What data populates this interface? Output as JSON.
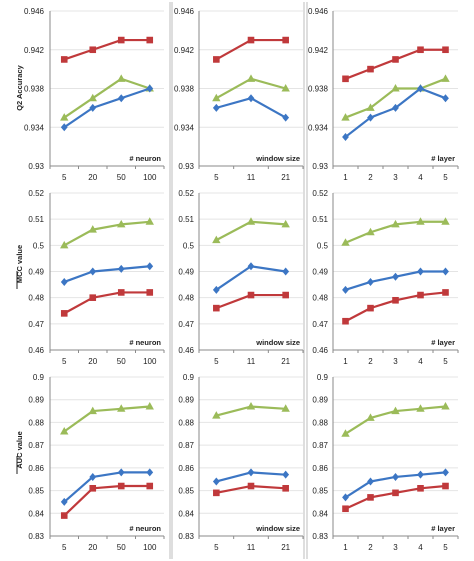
{
  "colors": {
    "red": "#c0393b",
    "blue": "#3c76c4",
    "green": "#9bbb59",
    "grid": "#e4e4e4",
    "axis": "#8a8a8a",
    "divider": "#bcbcbc"
  },
  "row_labels": [
    "Q2  Accuracy",
    "MCC value",
    "AUC value"
  ],
  "chart_data": [
    {
      "type": "line",
      "row": 0,
      "col": 0,
      "xlabel": "# neuron",
      "ylabel": "Q2  Accuracy",
      "categories": [
        "5",
        "20",
        "50",
        "100"
      ],
      "ylim": [
        0.93,
        0.946
      ],
      "yticks": [
        "0.93",
        "0.934",
        "0.938",
        "0.942",
        "0.946"
      ],
      "series": [
        {
          "color": "red",
          "marker": "square",
          "values": [
            0.941,
            0.942,
            0.943,
            0.943
          ]
        },
        {
          "color": "green",
          "marker": "triangle",
          "values": [
            0.935,
            0.937,
            0.939,
            0.938
          ]
        },
        {
          "color": "blue",
          "marker": "diamond",
          "values": [
            0.934,
            0.936,
            0.937,
            0.938
          ]
        }
      ]
    },
    {
      "type": "line",
      "row": 0,
      "col": 1,
      "xlabel": "window size",
      "ylabel": "",
      "categories": [
        "5",
        "11",
        "21"
      ],
      "ylim": [
        0.93,
        0.946
      ],
      "yticks": [
        "0.93",
        "0.934",
        "0.938",
        "0.942",
        "0.946"
      ],
      "series": [
        {
          "color": "red",
          "marker": "square",
          "values": [
            0.941,
            0.943,
            0.943
          ]
        },
        {
          "color": "green",
          "marker": "triangle",
          "values": [
            0.937,
            0.939,
            0.938
          ]
        },
        {
          "color": "blue",
          "marker": "diamond",
          "values": [
            0.936,
            0.937,
            0.935
          ]
        }
      ]
    },
    {
      "type": "line",
      "row": 0,
      "col": 2,
      "xlabel": "# layer",
      "ylabel": "",
      "categories": [
        "1",
        "2",
        "3",
        "4",
        "5"
      ],
      "ylim": [
        0.93,
        0.946
      ],
      "yticks": [
        "0.93",
        "0.934",
        "0.938",
        "0.942",
        "0.946"
      ],
      "series": [
        {
          "color": "red",
          "marker": "square",
          "values": [
            0.939,
            0.94,
            0.941,
            0.942,
            0.942
          ]
        },
        {
          "color": "green",
          "marker": "triangle",
          "values": [
            0.935,
            0.936,
            0.938,
            0.938,
            0.939
          ]
        },
        {
          "color": "blue",
          "marker": "diamond",
          "values": [
            0.933,
            0.935,
            0.936,
            0.938,
            0.937
          ]
        }
      ]
    },
    {
      "type": "line",
      "row": 1,
      "col": 0,
      "xlabel": "# neuron",
      "ylabel": "MCC value",
      "categories": [
        "5",
        "20",
        "50",
        "100"
      ],
      "ylim": [
        0.46,
        0.52
      ],
      "yticks": [
        "0.46",
        "0.47",
        "0.48",
        "0.49",
        "0.5",
        "0.51",
        "0.52"
      ],
      "series": [
        {
          "color": "green",
          "marker": "triangle",
          "values": [
            0.5,
            0.506,
            0.508,
            0.509
          ]
        },
        {
          "color": "blue",
          "marker": "diamond",
          "values": [
            0.486,
            0.49,
            0.491,
            0.492
          ]
        },
        {
          "color": "red",
          "marker": "square",
          "values": [
            0.474,
            0.48,
            0.482,
            0.482
          ]
        }
      ]
    },
    {
      "type": "line",
      "row": 1,
      "col": 1,
      "xlabel": "window size",
      "ylabel": "",
      "categories": [
        "5",
        "11",
        "21"
      ],
      "ylim": [
        0.46,
        0.52
      ],
      "yticks": [
        "0.46",
        "0.47",
        "0.48",
        "0.49",
        "0.5",
        "0.51",
        "0.52"
      ],
      "series": [
        {
          "color": "green",
          "marker": "triangle",
          "values": [
            0.502,
            0.509,
            0.508
          ]
        },
        {
          "color": "blue",
          "marker": "diamond",
          "values": [
            0.483,
            0.492,
            0.49
          ]
        },
        {
          "color": "red",
          "marker": "square",
          "values": [
            0.476,
            0.481,
            0.481
          ]
        }
      ]
    },
    {
      "type": "line",
      "row": 1,
      "col": 2,
      "xlabel": "# layer",
      "ylabel": "",
      "categories": [
        "1",
        "2",
        "3",
        "4",
        "5"
      ],
      "ylim": [
        0.46,
        0.52
      ],
      "yticks": [
        "0.46",
        "0.47",
        "0.48",
        "0.49",
        "0.5",
        "0.51",
        "0.52"
      ],
      "series": [
        {
          "color": "green",
          "marker": "triangle",
          "values": [
            0.501,
            0.505,
            0.508,
            0.509,
            0.509
          ]
        },
        {
          "color": "blue",
          "marker": "diamond",
          "values": [
            0.483,
            0.486,
            0.488,
            0.49,
            0.49
          ]
        },
        {
          "color": "red",
          "marker": "square",
          "values": [
            0.471,
            0.476,
            0.479,
            0.481,
            0.482
          ]
        }
      ]
    },
    {
      "type": "line",
      "row": 2,
      "col": 0,
      "xlabel": "# neuron",
      "ylabel": "AUC value",
      "categories": [
        "5",
        "20",
        "50",
        "100"
      ],
      "ylim": [
        0.83,
        0.9
      ],
      "yticks": [
        "0.83",
        "0.84",
        "0.85",
        "0.86",
        "0.87",
        "0.88",
        "0.89",
        "0.9"
      ],
      "series": [
        {
          "color": "green",
          "marker": "triangle",
          "values": [
            0.876,
            0.885,
            0.886,
            0.887
          ]
        },
        {
          "color": "blue",
          "marker": "diamond",
          "values": [
            0.845,
            0.856,
            0.858,
            0.858
          ]
        },
        {
          "color": "red",
          "marker": "square",
          "values": [
            0.839,
            0.851,
            0.852,
            0.852
          ]
        }
      ]
    },
    {
      "type": "line",
      "row": 2,
      "col": 1,
      "xlabel": "window size",
      "ylabel": "",
      "categories": [
        "5",
        "11",
        "21"
      ],
      "ylim": [
        0.83,
        0.9
      ],
      "yticks": [
        "0.83",
        "0.84",
        "0.85",
        "0.86",
        "0.87",
        "0.88",
        "0.89",
        "0.9"
      ],
      "series": [
        {
          "color": "green",
          "marker": "triangle",
          "values": [
            0.883,
            0.887,
            0.886
          ]
        },
        {
          "color": "blue",
          "marker": "diamond",
          "values": [
            0.854,
            0.858,
            0.857
          ]
        },
        {
          "color": "red",
          "marker": "square",
          "values": [
            0.849,
            0.852,
            0.851
          ]
        }
      ]
    },
    {
      "type": "line",
      "row": 2,
      "col": 2,
      "xlabel": "# layer",
      "ylabel": "",
      "categories": [
        "1",
        "2",
        "3",
        "4",
        "5"
      ],
      "ylim": [
        0.83,
        0.9
      ],
      "yticks": [
        "0.83",
        "0.84",
        "0.85",
        "0.86",
        "0.87",
        "0.88",
        "0.89",
        "0.9"
      ],
      "series": [
        {
          "color": "green",
          "marker": "triangle",
          "values": [
            0.875,
            0.882,
            0.885,
            0.886,
            0.887
          ]
        },
        {
          "color": "blue",
          "marker": "diamond",
          "values": [
            0.847,
            0.854,
            0.856,
            0.857,
            0.858
          ]
        },
        {
          "color": "red",
          "marker": "square",
          "values": [
            0.842,
            0.847,
            0.849,
            0.851,
            0.852
          ]
        }
      ]
    }
  ]
}
